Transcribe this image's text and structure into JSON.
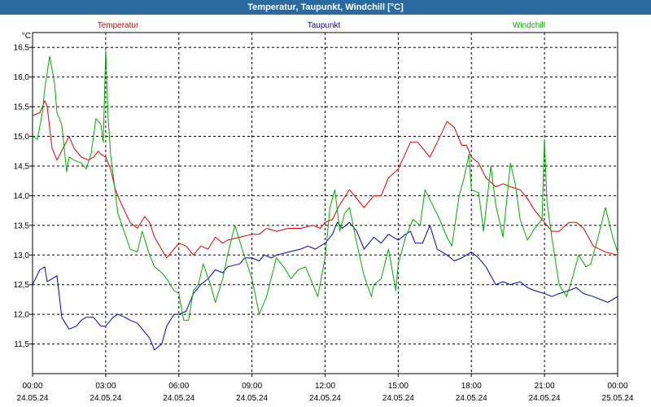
{
  "title": "Temperatur, Taupunkt, Windchill [°C]",
  "chart_data": {
    "type": "line",
    "title": "Temperatur, Taupunkt, Windchill [°C]",
    "ylabel": "°C",
    "ylim": [
      11.0,
      16.75
    ],
    "xlim": [
      0,
      24
    ],
    "y_ticks": [
      "11,5",
      "12,0",
      "12,5",
      "13,0",
      "13,5",
      "14,0",
      "14,5",
      "15,0",
      "15,5",
      "16,0",
      "16,5"
    ],
    "x_ticks": [
      {
        "time": "00:00",
        "date": "24.05.24"
      },
      {
        "time": "03:00",
        "date": "24.05.24"
      },
      {
        "time": "06:00",
        "date": "24.05.24"
      },
      {
        "time": "09:00",
        "date": "24.05.24"
      },
      {
        "time": "12:00",
        "date": "24.05.24"
      },
      {
        "time": "15:00",
        "date": "24.05.24"
      },
      {
        "time": "18:00",
        "date": "24.05.24"
      },
      {
        "time": "21:00",
        "date": "24.05.24"
      },
      {
        "time": "00:00",
        "date": "25.05.24"
      }
    ],
    "grid": true,
    "legend": "top",
    "series": [
      {
        "name": "Temperatur",
        "color": "#dd0000",
        "x": [
          0,
          0.3,
          0.5,
          0.6,
          0.8,
          1.0,
          1.5,
          1.7,
          2.0,
          2.3,
          2.5,
          2.7,
          2.8,
          3.0,
          3.2,
          3.4,
          3.6,
          4.0,
          4.3,
          4.6,
          4.8,
          5.0,
          5.5,
          5.8,
          6.0,
          6.3,
          6.6,
          6.9,
          7.2,
          7.5,
          7.8,
          8.0,
          8.5,
          9.0,
          9.3,
          9.6,
          10.0,
          10.5,
          11.0,
          11.5,
          11.8,
          12.0,
          12.3,
          12.6,
          13.0,
          13.3,
          13.6,
          14.0,
          14.3,
          14.6,
          15.0,
          15.5,
          15.8,
          16.0,
          16.3,
          16.6,
          17.0,
          17.3,
          17.6,
          17.8,
          18.0,
          18.3,
          18.6,
          19.0,
          19.3,
          19.6,
          20.0,
          20.3,
          20.6,
          21.0,
          21.3,
          21.6,
          22.0,
          22.3,
          22.6,
          23.0,
          23.5,
          24.0
        ],
        "values": [
          15.35,
          15.4,
          15.6,
          15.5,
          14.8,
          14.6,
          15.0,
          14.8,
          14.65,
          14.6,
          14.65,
          14.75,
          14.7,
          14.65,
          14.45,
          14.1,
          13.9,
          13.55,
          13.45,
          13.65,
          13.55,
          13.3,
          12.95,
          13.1,
          13.2,
          13.15,
          13.0,
          13.15,
          13.1,
          13.3,
          13.2,
          13.25,
          13.3,
          13.35,
          13.35,
          13.45,
          13.4,
          13.45,
          13.45,
          13.5,
          13.45,
          13.55,
          13.6,
          13.85,
          14.1,
          13.95,
          13.8,
          14.0,
          14.0,
          14.3,
          14.45,
          14.9,
          14.9,
          14.8,
          14.65,
          14.9,
          15.25,
          15.15,
          14.85,
          14.85,
          14.65,
          14.55,
          14.3,
          14.15,
          14.2,
          14.15,
          14.1,
          13.95,
          13.75,
          13.55,
          13.4,
          13.4,
          13.55,
          13.55,
          13.45,
          13.15,
          13.05,
          13.0
        ]
      },
      {
        "name": "Taupunkt",
        "color": "#0000bb",
        "x": [
          0,
          0.3,
          0.5,
          0.6,
          0.8,
          1.0,
          1.2,
          1.5,
          1.8,
          2.0,
          2.2,
          2.5,
          2.8,
          3.0,
          3.3,
          3.5,
          3.8,
          4.0,
          4.3,
          4.5,
          4.8,
          5.0,
          5.3,
          5.5,
          5.8,
          6.0,
          6.3,
          6.6,
          6.9,
          7.2,
          7.5,
          7.8,
          8.0,
          8.5,
          8.7,
          9.0,
          9.3,
          9.5,
          9.8,
          10.0,
          10.5,
          11.0,
          11.3,
          11.6,
          12.0,
          12.3,
          12.5,
          12.7,
          13.0,
          13.3,
          13.6,
          14.0,
          14.3,
          14.6,
          15.0,
          15.3,
          15.5,
          15.7,
          16.0,
          16.3,
          16.6,
          17.0,
          17.3,
          17.6,
          18.0,
          18.3,
          18.6,
          19.0,
          19.3,
          19.6,
          20.0,
          20.3,
          20.6,
          21.0,
          21.3,
          21.6,
          22.0,
          22.3,
          22.6,
          23.0,
          23.3,
          23.6,
          24.0
        ],
        "values": [
          12.5,
          12.75,
          12.8,
          12.55,
          12.6,
          12.65,
          11.95,
          11.75,
          11.8,
          11.9,
          11.95,
          11.95,
          11.8,
          11.8,
          11.95,
          12.0,
          11.95,
          11.9,
          11.85,
          11.75,
          11.6,
          11.4,
          11.5,
          11.8,
          12.0,
          12.0,
          12.05,
          12.35,
          12.5,
          12.6,
          12.75,
          12.7,
          12.8,
          12.85,
          12.95,
          12.95,
          12.9,
          13.0,
          12.95,
          13.0,
          13.05,
          13.1,
          13.15,
          13.1,
          13.2,
          13.35,
          13.55,
          13.45,
          13.55,
          13.4,
          13.1,
          13.3,
          13.2,
          13.35,
          13.25,
          13.35,
          13.4,
          13.2,
          13.2,
          13.5,
          13.1,
          13.0,
          12.9,
          12.95,
          13.05,
          12.95,
          12.8,
          12.5,
          12.55,
          12.5,
          12.55,
          12.45,
          12.4,
          12.35,
          12.3,
          12.35,
          12.4,
          12.45,
          12.35,
          12.3,
          12.25,
          12.2,
          12.3
        ]
      },
      {
        "name": "Windchill",
        "color": "#00aa00",
        "x": [
          0,
          0.2,
          0.4,
          0.5,
          0.7,
          0.9,
          1.0,
          1.2,
          1.4,
          1.5,
          1.7,
          2.0,
          2.2,
          2.4,
          2.6,
          2.8,
          2.9,
          3.0,
          3.1,
          3.2,
          3.35,
          3.5,
          3.8,
          4.0,
          4.3,
          4.5,
          4.8,
          5.0,
          5.3,
          5.5,
          5.8,
          6.0,
          6.2,
          6.4,
          6.6,
          6.8,
          7.0,
          7.3,
          7.5,
          7.8,
          8.0,
          8.3,
          8.6,
          9.0,
          9.3,
          9.6,
          10.0,
          10.3,
          10.6,
          10.9,
          11.2,
          11.5,
          11.7,
          12.0,
          12.2,
          12.4,
          12.6,
          12.8,
          13.0,
          13.3,
          13.6,
          13.9,
          14.0,
          14.3,
          14.6,
          14.9,
          15.0,
          15.3,
          15.6,
          15.9,
          16.1,
          16.4,
          16.7,
          17.0,
          17.2,
          17.5,
          17.7,
          17.9,
          18.0,
          18.3,
          18.5,
          18.8,
          19.0,
          19.3,
          19.6,
          19.8,
          20.0,
          20.3,
          20.6,
          20.9,
          21.0,
          21.1,
          21.3,
          21.6,
          21.9,
          22.1,
          22.4,
          22.7,
          22.9,
          23.2,
          23.5,
          23.8,
          24.0
        ],
        "values": [
          15.0,
          14.95,
          15.4,
          15.8,
          16.35,
          15.9,
          15.4,
          15.2,
          14.4,
          14.65,
          14.6,
          14.55,
          14.45,
          14.7,
          15.3,
          15.2,
          14.9,
          16.45,
          15.3,
          14.7,
          14.2,
          13.7,
          13.35,
          13.1,
          13.05,
          13.4,
          13.0,
          12.8,
          12.7,
          12.6,
          12.4,
          12.35,
          11.9,
          11.9,
          12.4,
          12.5,
          12.85,
          12.5,
          12.2,
          12.6,
          13.0,
          13.5,
          13.1,
          12.6,
          12.0,
          12.3,
          12.95,
          12.8,
          12.6,
          12.75,
          12.8,
          12.5,
          12.3,
          12.95,
          13.8,
          14.1,
          13.4,
          13.7,
          13.8,
          13.2,
          12.65,
          12.3,
          12.5,
          12.6,
          13.1,
          12.4,
          12.85,
          13.3,
          13.6,
          13.5,
          14.1,
          13.85,
          13.6,
          13.3,
          13.15,
          14.0,
          14.3,
          14.7,
          14.1,
          14.05,
          13.4,
          14.5,
          13.85,
          13.3,
          14.55,
          14.2,
          13.6,
          13.25,
          13.45,
          13.6,
          14.95,
          13.9,
          13.3,
          12.5,
          12.3,
          12.55,
          13.0,
          12.8,
          12.85,
          13.3,
          13.8,
          13.3,
          13.05
        ]
      }
    ]
  }
}
